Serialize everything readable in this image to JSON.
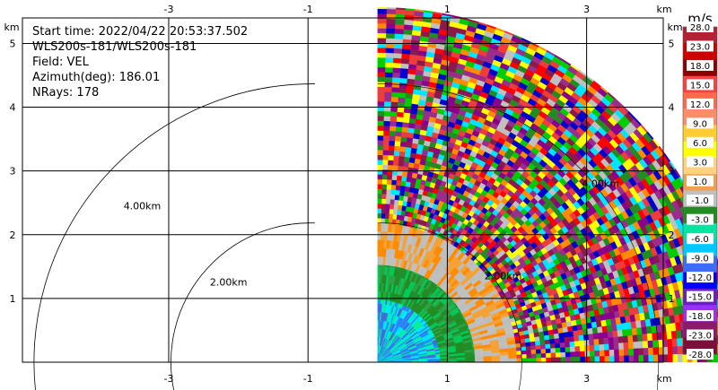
{
  "info": {
    "start_time": "Start time: 2022/04/22 20:53:37.502",
    "scan": "WLS200s-181/WLS200s-181",
    "field": "Field: VEL",
    "azimuth": "Azimuth(deg): 186.01",
    "nrays": "NRays: 178"
  },
  "chart_data": {
    "type": "heatmap",
    "subtype": "radar PPI sector",
    "xlabel": "km",
    "ylabel": "km",
    "xlim": [
      -5.1,
      4.1
    ],
    "ylim": [
      0,
      5.4
    ],
    "x_ticks": [
      -3,
      -1,
      1,
      3
    ],
    "y_ticks": [
      1,
      2,
      3,
      4,
      5
    ],
    "x_tick_labels": [
      "-3",
      "-1",
      "1",
      "3"
    ],
    "y_tick_labels": [
      "1",
      "2",
      "3",
      "4",
      "5"
    ],
    "grid": true,
    "range_rings": [
      {
        "radius_km": 2.0,
        "label": "2.00km"
      },
      {
        "radius_km": 4.0,
        "label": "4.00km"
      }
    ],
    "ring_center_km": [
      -0.9,
      0
    ],
    "extra_ring_labels": [
      "2.00km",
      "4.00km"
    ],
    "sector": {
      "origin_km": [
        0,
        0
      ],
      "azimuth_from_deg": 0,
      "azimuth_to_deg": 90,
      "max_range_km": 5.1
    },
    "bands": [
      {
        "from_km": 0.0,
        "to_km": 0.9,
        "dominant": "-9.0 to -12.0",
        "colors": [
          "#00e5ff",
          "#00ef9a",
          "#4169e1",
          "#1e90ff"
        ]
      },
      {
        "from_km": 0.9,
        "to_km": 1.4,
        "dominant": "-1.0 to -3.0",
        "colors": [
          "#1e8f2a",
          "#228b22",
          "#2ea043",
          "#00c957"
        ]
      },
      {
        "from_km": 1.4,
        "to_km": 2.0,
        "dominant": "1.0",
        "colors": [
          "#c0c0c0",
          "#bdbdbd",
          "#f4a236",
          "#ff8c00"
        ]
      },
      {
        "from_km": 2.0,
        "to_km": 5.1,
        "dominant": "noise",
        "colors": [
          "#8b1a4a",
          "#9b2c8c",
          "#ff0000",
          "#ffff00",
          "#0000cd",
          "#00cc00",
          "#ff8c00",
          "#00e5ff",
          "#c0c0c0",
          "#228b22",
          "#ee3b3b",
          "#8b008b"
        ]
      }
    ],
    "colorbar": {
      "unit": "m/s",
      "labels": [
        "28.0",
        "23.0",
        "18.0",
        "15.0",
        "12.0",
        "9.0",
        "6.0",
        "3.0",
        "1.0",
        "-1.0",
        "-3.0",
        "-6.0",
        "-9.0",
        "-12.0",
        "-15.0",
        "-18.0",
        "-23.0",
        "-28.0"
      ],
      "colors": [
        "#b22234",
        "#cc0000",
        "#8b0000",
        "#ff4040",
        "#ff6a4d",
        "#ff8c69",
        "#ffcc33",
        "#ffff00",
        "#ffd27f",
        "#f0a050",
        "#c0c0c0",
        "#228b22",
        "#00e5a0",
        "#00c8ff",
        "#3b6cff",
        "#0000ff",
        "#6a1fc0",
        "#9b30ff",
        "#8b1a6b",
        "#7a0f3a"
      ]
    },
    "axis_unit_labels": {
      "x": "km",
      "y": "km"
    }
  }
}
